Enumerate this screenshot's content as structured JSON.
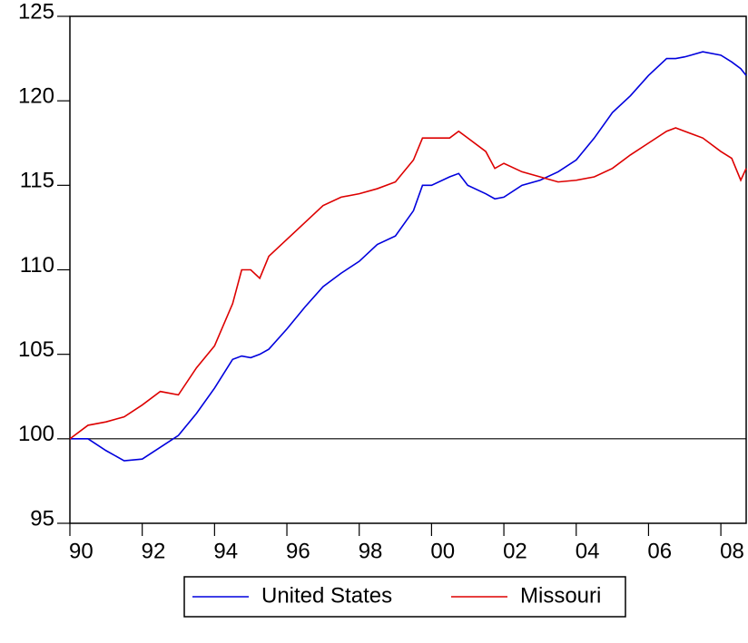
{
  "chart_data": {
    "type": "line",
    "x": [
      1990,
      1990.5,
      1991,
      1991.5,
      1992,
      1992.5,
      1993,
      1993.5,
      1994,
      1994.5,
      1994.75,
      1995,
      1995.25,
      1995.5,
      1996,
      1996.5,
      1997,
      1997.5,
      1998,
      1998.5,
      1999,
      1999.5,
      1999.75,
      2000,
      2000.5,
      2000.75,
      2001,
      2001.5,
      2001.75,
      2002,
      2002.5,
      2003,
      2003.5,
      2004,
      2004.5,
      2005,
      2005.5,
      2006,
      2006.5,
      2006.75,
      2007,
      2007.5,
      2008,
      2008.3,
      2008.55,
      2008.7
    ],
    "series": [
      {
        "name": "United States",
        "color": "#0000dd",
        "values": [
          100,
          100,
          99.3,
          98.7,
          98.8,
          99.5,
          100.2,
          101.5,
          103,
          104.7,
          104.9,
          104.8,
          105,
          105.3,
          106.5,
          107.8,
          109,
          109.8,
          110.5,
          111.5,
          112,
          113.5,
          115,
          115,
          115.5,
          115.7,
          115,
          114.5,
          114.2,
          114.3,
          115,
          115.3,
          115.8,
          116.5,
          117.8,
          119.3,
          120.3,
          121.5,
          122.5,
          122.5,
          122.6,
          122.9,
          122.7,
          122.3,
          121.9,
          121.5
        ]
      },
      {
        "name": "Missouri",
        "color": "#dd0000",
        "values": [
          100,
          100.8,
          101,
          101.3,
          102,
          102.8,
          102.6,
          104.2,
          105.5,
          108,
          110,
          110,
          109.5,
          110.8,
          111.8,
          112.8,
          113.8,
          114.3,
          114.5,
          114.8,
          115.2,
          116.5,
          117.8,
          117.8,
          117.8,
          118.2,
          117.8,
          117,
          116,
          116.3,
          115.8,
          115.5,
          115.2,
          115.3,
          115.5,
          116,
          116.8,
          117.5,
          118.2,
          118.4,
          118.2,
          117.8,
          117,
          116.6,
          115.3,
          116
        ]
      }
    ],
    "reference_line": 100,
    "xlim": [
      1990,
      2008.7
    ],
    "xticks": [
      {
        "value": 1990,
        "label": "90"
      },
      {
        "value": 1992,
        "label": "92"
      },
      {
        "value": 1994,
        "label": "94"
      },
      {
        "value": 1996,
        "label": "96"
      },
      {
        "value": 1998,
        "label": "98"
      },
      {
        "value": 2000,
        "label": "00"
      },
      {
        "value": 2002,
        "label": "02"
      },
      {
        "value": 2004,
        "label": "04"
      },
      {
        "value": 2006,
        "label": "06"
      },
      {
        "value": 2008,
        "label": "08"
      }
    ],
    "ylim": [
      95,
      125
    ],
    "yticks": [
      95,
      100,
      105,
      110,
      115,
      120,
      125
    ],
    "legend": "bottom"
  }
}
